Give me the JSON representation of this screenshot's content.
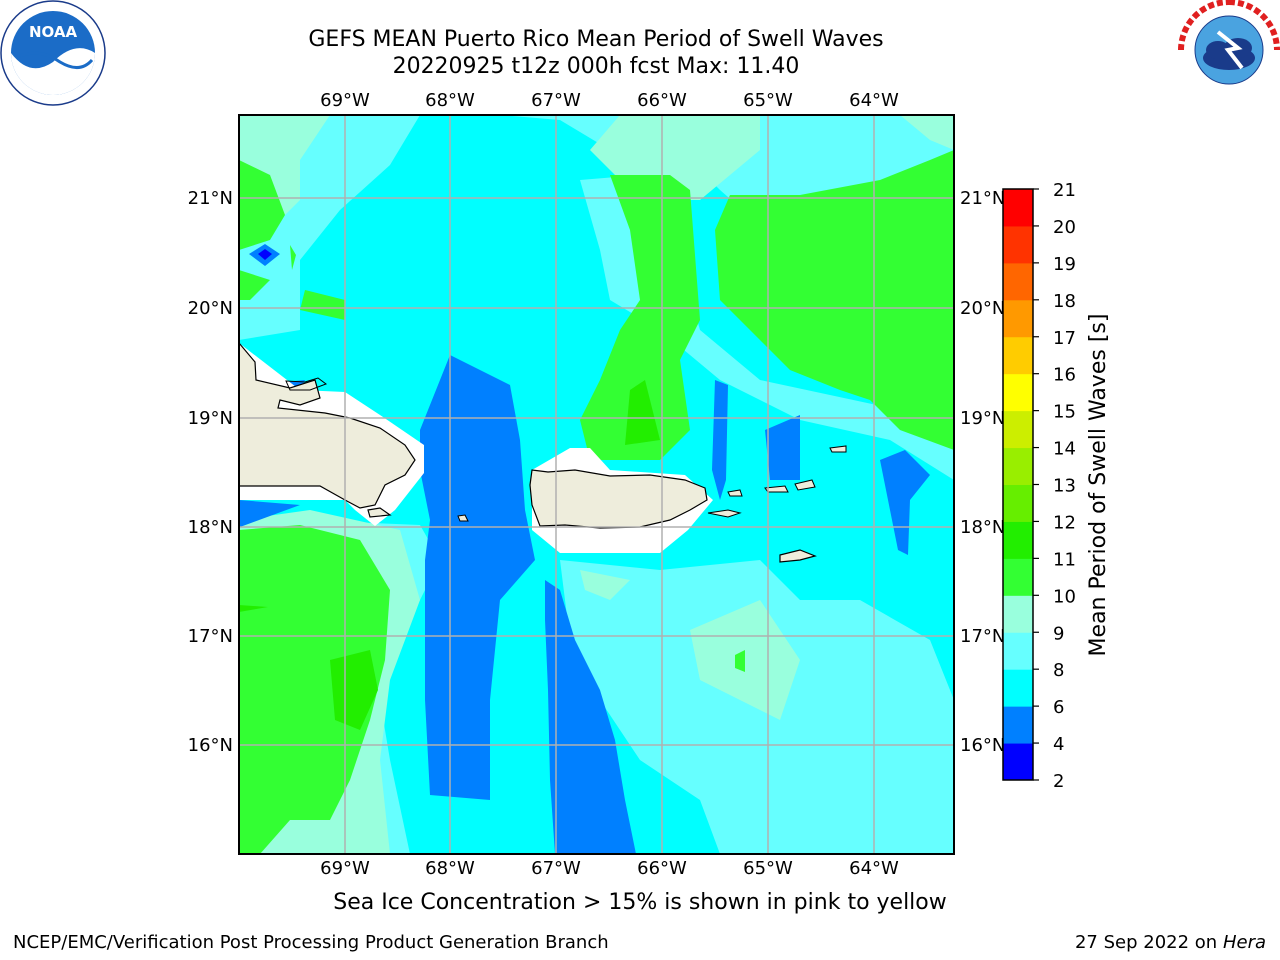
{
  "title": {
    "line1": "GEFS MEAN Puerto Rico Mean Period of Swell Waves",
    "line2": "20220925 t12z 000h fcst   Max: 11.40"
  },
  "map": {
    "lon_ticks": [
      "69°W",
      "68°W",
      "67°W",
      "66°W",
      "65°W",
      "64°W"
    ],
    "lat_ticks": [
      "21°N",
      "20°N",
      "19°N",
      "18°N",
      "17°N",
      "16°N"
    ],
    "lon_range": [
      -70.0,
      -63.25
    ],
    "lat_range": [
      15.0,
      21.75
    ],
    "land_color": "#eeeddc",
    "grid_color": "#b0b0b0"
  },
  "colorbar": {
    "label": "Mean Period of Swell Waves [s]",
    "ticks": [
      "21",
      "20",
      "19",
      "18",
      "17",
      "16",
      "15",
      "14",
      "13",
      "12",
      "11",
      "10",
      "9",
      "8",
      "6",
      "4",
      "2"
    ],
    "levels": [
      2,
      4,
      6,
      8,
      9,
      10,
      11,
      12,
      13,
      14,
      15,
      16,
      17,
      18,
      19,
      20,
      21
    ],
    "colors": [
      "#0000ff",
      "#0080ff",
      "#00ffff",
      "#66ffff",
      "#99ffdd",
      "#33ff33",
      "#22ee00",
      "#66ee00",
      "#99ee00",
      "#ccee00",
      "#ffff00",
      "#ffcc00",
      "#ff9900",
      "#ff6600",
      "#ff3300",
      "#ff0000"
    ]
  },
  "subtitle": "Sea Ice Concentration > 15% is shown in pink to yellow",
  "footer": {
    "left": "NCEP/EMC/Verification Post Processing Product Generation Branch",
    "right_date": "27 Sep 2022 on",
    "right_host": "Hera"
  },
  "logos": {
    "noaa": "NOAA",
    "noaa_ring": "NATIONAL OCEANIC AND ATMOSPHERIC ADMINISTRATION · U.S. DEPARTMENT OF COMMERCE",
    "nws_ring": "NATIONAL WEATHER SERVICE"
  }
}
